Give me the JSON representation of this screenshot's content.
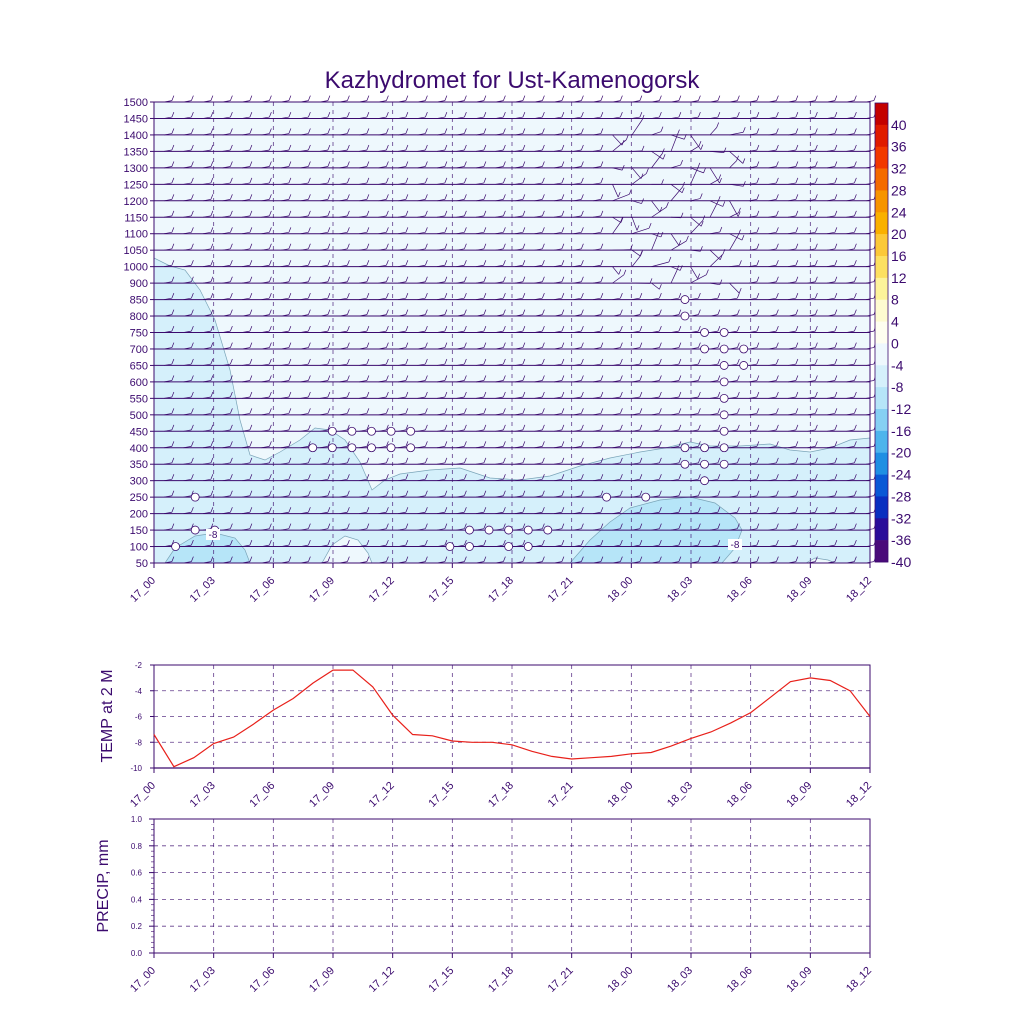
{
  "title": "Kazhydromet for Ust-Kamenogorsk",
  "time_labels": [
    "17_00",
    "17_03",
    "17_06",
    "17_09",
    "17_12",
    "17_15",
    "17_18",
    "17_21",
    "18_00",
    "18_03",
    "18_06",
    "18_09",
    "18_12"
  ],
  "chart_data": [
    {
      "type": "heatmap",
      "name": "cross-section",
      "y_ticks": [
        1500,
        1450,
        1400,
        1350,
        1300,
        1250,
        1200,
        1150,
        1100,
        1050,
        1000,
        900,
        850,
        800,
        750,
        700,
        650,
        600,
        550,
        500,
        450,
        400,
        350,
        300,
        250,
        200,
        150,
        100,
        50
      ],
      "colorbar": {
        "labels": [
          "40",
          "36",
          "32",
          "28",
          "24",
          "20",
          "16",
          "12",
          "8",
          "4",
          "0",
          "-4",
          "-8",
          "-12",
          "-16",
          "-20",
          "-24",
          "-28",
          "-32",
          "-36",
          "-40"
        ],
        "colors": [
          "#c40000",
          "#e01a00",
          "#f23800",
          "#f56a00",
          "#f79400",
          "#fab000",
          "#fcc838",
          "#fde060",
          "#fdf39a",
          "#fefbd0",
          "#fefef0",
          "#eef8fd",
          "#d5f0fb",
          "#b6e5f8",
          "#86d0f3",
          "#4eb4ec",
          "#1f8fe3",
          "#0a58d6",
          "#0a2ec0",
          "#2a0c9a",
          "#4a0a7a"
        ]
      },
      "contour_labels": [
        "-8",
        "-8"
      ]
    },
    {
      "type": "line",
      "name": "temp",
      "ylabel": "TEMP at 2 M",
      "ylim": [
        -10,
        -2
      ],
      "y_ticks": [
        "-2",
        "-4",
        "-6",
        "-8",
        "-10"
      ],
      "x": [
        0,
        1,
        2,
        3,
        4,
        5,
        6,
        7,
        8,
        9,
        10,
        11,
        12,
        13,
        14,
        15,
        16,
        17,
        18,
        19,
        20,
        21,
        22,
        23,
        24,
        25,
        26,
        27,
        28,
        29,
        30,
        31,
        32,
        33,
        34,
        35,
        36
      ],
      "values": [
        -7.4,
        -9.9,
        -9.2,
        -8.1,
        -7.6,
        -6.6,
        -5.5,
        -4.6,
        -3.4,
        -2.4,
        -2.4,
        -3.7,
        -5.9,
        -7.4,
        -7.5,
        -7.9,
        -8.0,
        -8.0,
        -8.2,
        -8.7,
        -9.1,
        -9.3,
        -9.2,
        -9.1,
        -8.9,
        -8.8,
        -8.3,
        -7.7,
        -7.2,
        -6.5,
        -5.7,
        -4.5,
        -3.3,
        -3.0,
        -3.2,
        -4.0,
        -6.0
      ],
      "color": "#e8201a"
    },
    {
      "type": "line",
      "name": "precip",
      "ylabel": "PRECIP, mm",
      "ylim": [
        0,
        1
      ],
      "y_ticks": [
        "1.0",
        "0.8",
        "0.6",
        "0.4",
        "0.2",
        "0.0"
      ],
      "x": [],
      "values": []
    }
  ]
}
